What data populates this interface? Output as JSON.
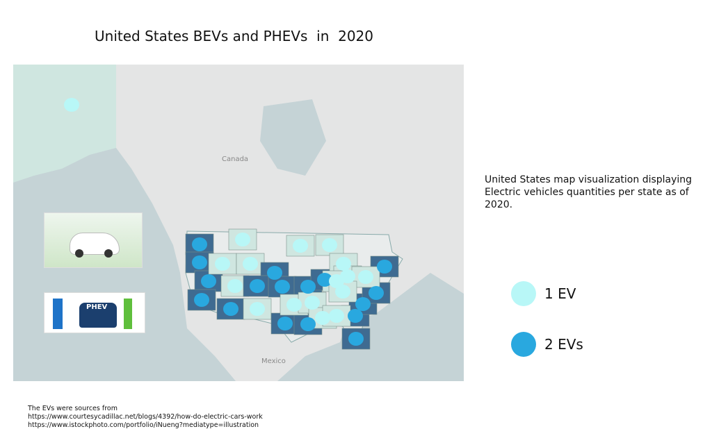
{
  "title": "United States BEVs and PHEVs  in  2020",
  "map": {
    "labels": {
      "canada": "Canada",
      "mexico": "Mexico"
    },
    "colors": {
      "one_ev": "#b8f7f7",
      "two_evs": "#29a8df",
      "state_two": "#3f6b91",
      "state_one": "#cfe6e0"
    },
    "states": [
      {
        "state": "AK",
        "evs": 1
      },
      {
        "state": "WA",
        "evs": 2
      },
      {
        "state": "OR",
        "evs": 2
      },
      {
        "state": "NV",
        "evs": 2
      },
      {
        "state": "CA",
        "evs": 2
      },
      {
        "state": "AZ",
        "evs": 2
      },
      {
        "state": "MT",
        "evs": 1
      },
      {
        "state": "ID",
        "evs": 1
      },
      {
        "state": "WY",
        "evs": 1
      },
      {
        "state": "UT",
        "evs": 1
      },
      {
        "state": "NM",
        "evs": 1
      },
      {
        "state": "NE",
        "evs": 2
      },
      {
        "state": "CO",
        "evs": 2
      },
      {
        "state": "KS",
        "evs": 2
      },
      {
        "state": "MO",
        "evs": 2
      },
      {
        "state": "IL",
        "evs": 2
      },
      {
        "state": "TX",
        "evs": 2
      },
      {
        "state": "LA",
        "evs": 2
      },
      {
        "state": "FL",
        "evs": 2
      },
      {
        "state": "SC",
        "evs": 2
      },
      {
        "state": "NC",
        "evs": 2
      },
      {
        "state": "VA",
        "evs": 2
      },
      {
        "state": "NY",
        "evs": 2
      },
      {
        "state": "MN",
        "evs": 1
      },
      {
        "state": "WI",
        "evs": 1
      },
      {
        "state": "MI",
        "evs": 1
      },
      {
        "state": "OH",
        "evs": 1
      },
      {
        "state": "PA",
        "evs": 1
      },
      {
        "state": "IN",
        "evs": 1
      },
      {
        "state": "KY",
        "evs": 1
      },
      {
        "state": "OK",
        "evs": 1
      },
      {
        "state": "AR",
        "evs": 1
      },
      {
        "state": "MS",
        "evs": 1
      },
      {
        "state": "AL",
        "evs": 1
      }
    ]
  },
  "description": "United States map visualization displaying Electric vehicles quantities per state as of 2020.",
  "legend": [
    {
      "label": "1 EV",
      "color": "#b8f7f7"
    },
    {
      "label": "2 EVs",
      "color": "#29a8df"
    }
  ],
  "images": {
    "phev_badge": "PHEV"
  },
  "sources": {
    "heading": "The EVs were sources from",
    "links": [
      "https://www.courtesycadillac.net/blogs/4392/how-do-electric-cars-work",
      "https://www.istockphoto.com/portfolio/iNueng?mediatype=illustration"
    ]
  }
}
